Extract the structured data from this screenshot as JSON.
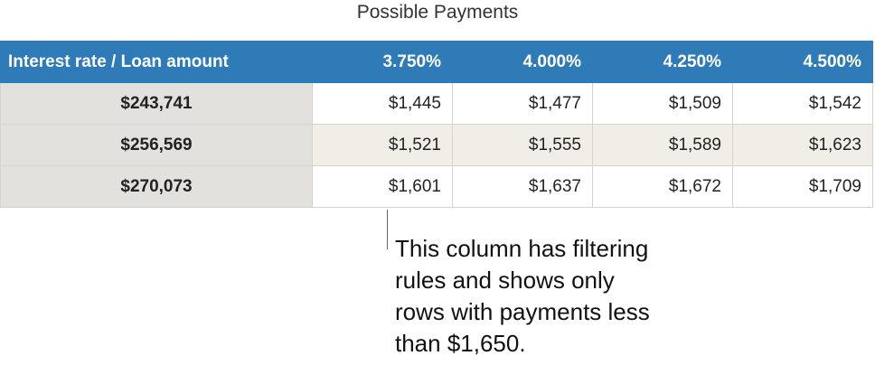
{
  "title": "Possible Payments",
  "table": {
    "header": [
      "Interest rate / Loan amount",
      "3.750%",
      "4.000%",
      "4.250%",
      "4.500%"
    ],
    "rows": [
      [
        "$243,741",
        "$1,445",
        "$1,477",
        "$1,509",
        "$1,542"
      ],
      [
        "$256,569",
        "$1,521",
        "$1,555",
        "$1,589",
        "$1,623"
      ],
      [
        "$270,073",
        "$1,601",
        "$1,637",
        "$1,672",
        "$1,709"
      ]
    ]
  },
  "callout": {
    "lines": [
      "This column has filtering",
      "rules and shows only",
      "rows with payments less",
      "than $1,650."
    ]
  }
}
